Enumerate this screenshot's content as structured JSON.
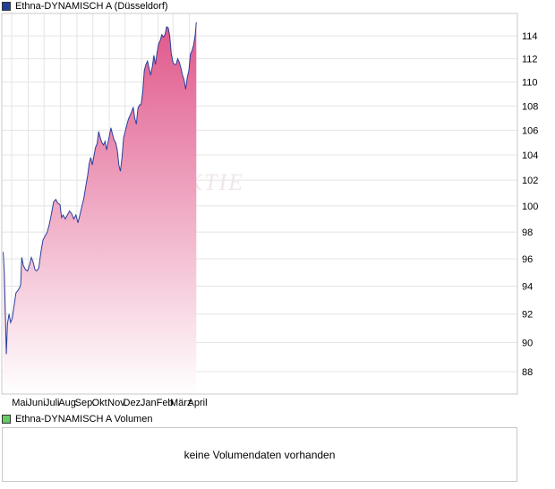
{
  "colors": {
    "price_swatch": "#1f3f9a",
    "volume_swatch": "#66cc66",
    "line": "#2a3f9c",
    "fill_top": "#e0568a",
    "fill_bottom": "#ffffff",
    "grid": "#e4e4e4",
    "watermark": "#efe7e7"
  },
  "watermark": "AKTIE",
  "chart_data": [
    {
      "type": "area",
      "legend": "Ethna-DYNAMISCH A (Düsseldorf)",
      "title": "",
      "xlabel": "",
      "ylabel": "",
      "x_ticks": [
        "Mai",
        "Juni",
        "Juli",
        "Aug.",
        "Sep.",
        "Okt.",
        "Nov.",
        "Dez.",
        "Jan.",
        "Feb.",
        "März",
        "April"
      ],
      "y_ticks": [
        88,
        90,
        92,
        94,
        96,
        98,
        100,
        102,
        104,
        106,
        108,
        110,
        112,
        114
      ],
      "y_scale": "log",
      "ylim": [
        86.5,
        115.5
      ],
      "grid": true,
      "series": [
        {
          "name": "Ethna-DYNAMISCH A",
          "points": [
            [
              "2024-04-15",
              96.5
            ],
            [
              "2024-04-17",
              95.0
            ],
            [
              "2024-04-19",
              92.0
            ],
            [
              "2024-04-21",
              89.2
            ],
            [
              "2024-04-23",
              91.3
            ],
            [
              "2024-04-26",
              92.0
            ],
            [
              "2024-04-29",
              91.4
            ],
            [
              "2024-05-02",
              91.7
            ],
            [
              "2024-05-06",
              92.7
            ],
            [
              "2024-05-09",
              93.5
            ],
            [
              "2024-05-13",
              93.7
            ],
            [
              "2024-05-16",
              93.9
            ],
            [
              "2024-05-18",
              94.1
            ],
            [
              "2024-05-20",
              96.1
            ],
            [
              "2024-05-23",
              95.5
            ],
            [
              "2024-05-27",
              95.2
            ],
            [
              "2024-05-31",
              95.1
            ],
            [
              "2024-06-04",
              95.6
            ],
            [
              "2024-06-07",
              96.1
            ],
            [
              "2024-06-10",
              95.8
            ],
            [
              "2024-06-14",
              95.2
            ],
            [
              "2024-06-17",
              95.1
            ],
            [
              "2024-06-21",
              95.3
            ],
            [
              "2024-06-25",
              96.5
            ],
            [
              "2024-06-29",
              97.4
            ],
            [
              "2024-07-03",
              97.7
            ],
            [
              "2024-07-07",
              98.0
            ],
            [
              "2024-07-11",
              98.6
            ],
            [
              "2024-07-15",
              99.4
            ],
            [
              "2024-07-19",
              100.3
            ],
            [
              "2024-07-23",
              100.5
            ],
            [
              "2024-07-27",
              100.2
            ],
            [
              "2024-07-31",
              100.1
            ],
            [
              "2024-08-03",
              99.1
            ],
            [
              "2024-08-06",
              99.3
            ],
            [
              "2024-08-10",
              99.0
            ],
            [
              "2024-08-14",
              99.3
            ],
            [
              "2024-08-18",
              99.6
            ],
            [
              "2024-08-22",
              99.4
            ],
            [
              "2024-08-26",
              99.0
            ],
            [
              "2024-08-30",
              99.3
            ],
            [
              "2024-09-03",
              98.7
            ],
            [
              "2024-09-06",
              99.2
            ],
            [
              "2024-09-10",
              99.9
            ],
            [
              "2024-09-14",
              100.6
            ],
            [
              "2024-09-18",
              101.6
            ],
            [
              "2024-09-21",
              102.3
            ],
            [
              "2024-09-24",
              103.3
            ],
            [
              "2024-09-27",
              103.8
            ],
            [
              "2024-09-30",
              103.2
            ],
            [
              "2024-10-03",
              103.9
            ],
            [
              "2024-10-06",
              104.6
            ],
            [
              "2024-10-09",
              104.9
            ],
            [
              "2024-10-12",
              105.9
            ],
            [
              "2024-10-15",
              105.4
            ],
            [
              "2024-10-18",
              105.0
            ],
            [
              "2024-10-21",
              104.8
            ],
            [
              "2024-10-24",
              105.1
            ],
            [
              "2024-10-27",
              104.4
            ],
            [
              "2024-10-31",
              105.3
            ],
            [
              "2024-11-04",
              106.2
            ],
            [
              "2024-11-07",
              105.7
            ],
            [
              "2024-11-10",
              105.2
            ],
            [
              "2024-11-13",
              105.0
            ],
            [
              "2024-11-16",
              104.4
            ],
            [
              "2024-11-19",
              103.2
            ],
            [
              "2024-11-22",
              102.7
            ],
            [
              "2024-11-25",
              103.8
            ],
            [
              "2024-11-28",
              105.4
            ],
            [
              "2024-12-01",
              105.9
            ],
            [
              "2024-12-04",
              106.4
            ],
            [
              "2024-12-07",
              106.9
            ],
            [
              "2024-12-10",
              107.2
            ],
            [
              "2024-12-13",
              107.5
            ],
            [
              "2024-12-16",
              107.9
            ],
            [
              "2024-12-19",
              107.0
            ],
            [
              "2024-12-22",
              106.5
            ],
            [
              "2024-12-25",
              107.8
            ],
            [
              "2024-12-28",
              108.1
            ],
            [
              "2024-12-31",
              108.1
            ],
            [
              "2025-01-03",
              109.1
            ],
            [
              "2025-01-06",
              111.0
            ],
            [
              "2025-01-09",
              111.5
            ],
            [
              "2025-01-12",
              111.8
            ],
            [
              "2025-01-15",
              111.2
            ],
            [
              "2025-01-18",
              110.6
            ],
            [
              "2025-01-21",
              111.3
            ],
            [
              "2025-01-24",
              112.3
            ],
            [
              "2025-01-27",
              111.5
            ],
            [
              "2025-01-30",
              112.5
            ],
            [
              "2025-02-02",
              113.3
            ],
            [
              "2025-02-05",
              113.6
            ],
            [
              "2025-02-08",
              114.1
            ],
            [
              "2025-02-11",
              113.9
            ],
            [
              "2025-02-14",
              114.1
            ],
            [
              "2025-02-17",
              114.8
            ],
            [
              "2025-02-20",
              114.7
            ],
            [
              "2025-02-23",
              114.0
            ],
            [
              "2025-02-26",
              112.4
            ],
            [
              "2025-03-01",
              111.7
            ],
            [
              "2025-03-04",
              111.5
            ],
            [
              "2025-03-07",
              111.5
            ],
            [
              "2025-03-10",
              112.0
            ],
            [
              "2025-03-13",
              111.7
            ],
            [
              "2025-03-16",
              111.2
            ],
            [
              "2025-03-19",
              110.6
            ],
            [
              "2025-03-22",
              110.2
            ],
            [
              "2025-03-25",
              109.4
            ],
            [
              "2025-03-28",
              110.4
            ],
            [
              "2025-03-31",
              111.0
            ],
            [
              "2025-04-03",
              112.4
            ],
            [
              "2025-04-06",
              112.7
            ],
            [
              "2025-04-09",
              113.2
            ],
            [
              "2025-04-12",
              114.1
            ],
            [
              "2025-04-14",
              115.2
            ]
          ]
        }
      ]
    },
    {
      "type": "bar",
      "legend": "Ethna-DYNAMISCH A Volumen",
      "empty_message": "keine Volumendaten vorhanden",
      "values": []
    }
  ]
}
